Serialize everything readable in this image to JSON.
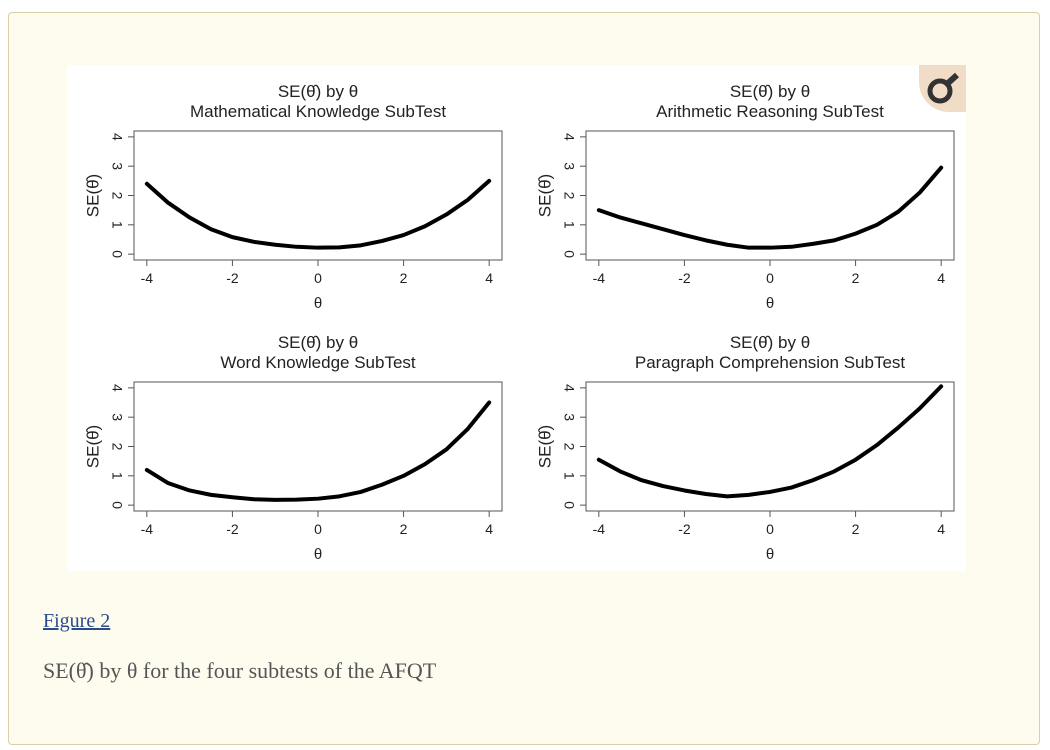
{
  "chart_data": [
    {
      "type": "line",
      "title": "SE(θ̂) by θ",
      "subtitle": "Mathematical Knowledge SubTest",
      "xlabel": "θ",
      "ylabel": "SE(θ̂)",
      "x": [
        -4,
        -3.5,
        -3,
        -2.5,
        -2,
        -1.5,
        -1,
        -0.5,
        0,
        0.5,
        1,
        1.5,
        2,
        2.5,
        3,
        3.5,
        4
      ],
      "series": [
        {
          "color": "#000000",
          "values": [
            2.4,
            1.75,
            1.25,
            0.85,
            0.58,
            0.42,
            0.32,
            0.25,
            0.22,
            0.23,
            0.3,
            0.45,
            0.65,
            0.95,
            1.35,
            1.85,
            2.5
          ]
        }
      ],
      "xlim": [
        -4.3,
        4.3
      ],
      "ylim": [
        -0.2,
        4.2
      ],
      "xticks": [
        -4,
        -2,
        0,
        2,
        4
      ],
      "yticks": [
        0,
        1,
        2,
        3,
        4
      ]
    },
    {
      "type": "line",
      "title": "SE(θ̂) by θ",
      "subtitle": "Arithmetic Reasoning SubTest",
      "xlabel": "θ",
      "ylabel": "SE(θ̂)",
      "x": [
        -4,
        -3.5,
        -3,
        -2.5,
        -2,
        -1.5,
        -1,
        -0.5,
        0,
        0.5,
        1,
        1.5,
        2,
        2.5,
        3,
        3.5,
        4
      ],
      "series": [
        {
          "color": "#000000",
          "values": [
            1.5,
            1.25,
            1.05,
            0.85,
            0.65,
            0.47,
            0.32,
            0.22,
            0.22,
            0.25,
            0.35,
            0.47,
            0.7,
            1.0,
            1.45,
            2.1,
            2.95
          ]
        }
      ],
      "xlim": [
        -4.3,
        4.3
      ],
      "ylim": [
        -0.2,
        4.2
      ],
      "xticks": [
        -4,
        -2,
        0,
        2,
        4
      ],
      "yticks": [
        0,
        1,
        2,
        3,
        4
      ]
    },
    {
      "type": "line",
      "title": "SE(θ̂) by θ",
      "subtitle": "Word Knowledge SubTest",
      "xlabel": "θ",
      "ylabel": "SE(θ̂)",
      "x": [
        -4,
        -3.5,
        -3,
        -2.5,
        -2,
        -1.5,
        -1,
        -0.5,
        0,
        0.5,
        1,
        1.5,
        2,
        2.5,
        3,
        3.5,
        4
      ],
      "series": [
        {
          "color": "#000000",
          "values": [
            1.2,
            0.75,
            0.5,
            0.35,
            0.27,
            0.2,
            0.18,
            0.19,
            0.22,
            0.3,
            0.45,
            0.7,
            1.0,
            1.4,
            1.9,
            2.6,
            3.5
          ]
        }
      ],
      "xlim": [
        -4.3,
        4.3
      ],
      "ylim": [
        -0.2,
        4.2
      ],
      "xticks": [
        -4,
        -2,
        0,
        2,
        4
      ],
      "yticks": [
        0,
        1,
        2,
        3,
        4
      ]
    },
    {
      "type": "line",
      "title": "SE(θ̂) by θ",
      "subtitle": "Paragraph Comprehension SubTest",
      "xlabel": "θ",
      "ylabel": "SE(θ̂)",
      "x": [
        -4,
        -3.5,
        -3,
        -2.5,
        -2,
        -1.5,
        -1,
        -0.5,
        0,
        0.5,
        1,
        1.5,
        2,
        2.5,
        3,
        3.5,
        4
      ],
      "series": [
        {
          "color": "#000000",
          "values": [
            1.55,
            1.15,
            0.85,
            0.65,
            0.5,
            0.38,
            0.3,
            0.35,
            0.45,
            0.6,
            0.85,
            1.15,
            1.55,
            2.05,
            2.65,
            3.3,
            4.05
          ]
        }
      ],
      "xlim": [
        -4.3,
        4.3
      ],
      "ylim": [
        -0.2,
        4.2
      ],
      "xticks": [
        -4,
        -2,
        0,
        2,
        4
      ],
      "yticks": [
        0,
        1,
        2,
        3,
        4
      ]
    }
  ],
  "figure": {
    "label": "Figure 2",
    "caption": "SE(θ̂) by θ for the four subtests of the AFQT"
  }
}
